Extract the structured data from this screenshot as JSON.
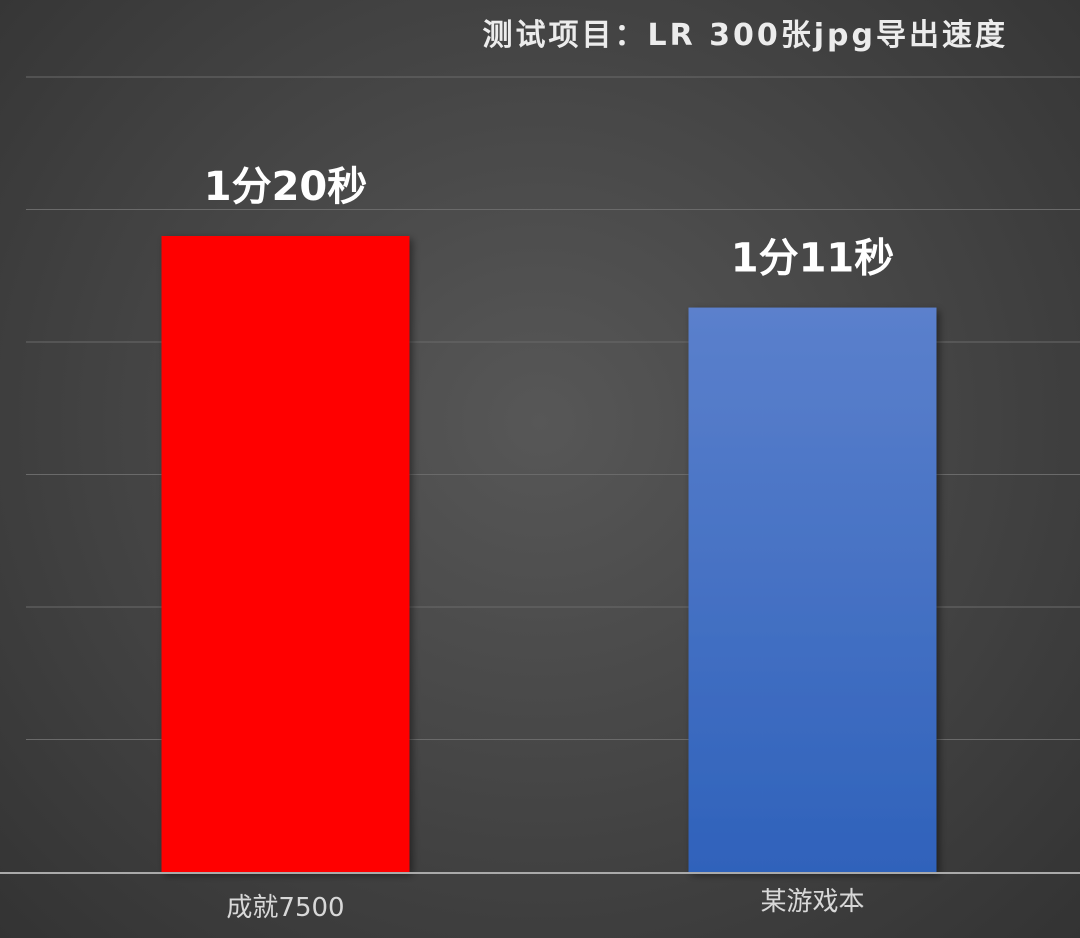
{
  "chart_data": {
    "type": "bar",
    "title": "测试项目：LR 300张jpg导出速度",
    "xlabel": "",
    "ylabel": "",
    "categories": [
      "成就7500",
      "某游戏本"
    ],
    "values": [
      80,
      71
    ],
    "data_labels": [
      "1分20秒",
      "1分11秒"
    ],
    "unit": "seconds",
    "ylim": [
      0,
      100
    ],
    "grid": true,
    "legend": "none"
  },
  "colors": {
    "bar_1": "#ff0000",
    "bar_2_top": "#5b80cc",
    "bar_2_bottom": "#2f62bb",
    "gridline": "#6a6a6a",
    "axis": "#aaaaaa"
  }
}
